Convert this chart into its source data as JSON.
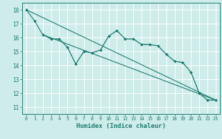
{
  "xlabel": "Humidex (Indice chaleur)",
  "background_color": "#cdecea",
  "grid_color": "#ffffff",
  "line_color": "#1a7a6e",
  "x_ticks": [
    0,
    1,
    2,
    3,
    4,
    5,
    6,
    7,
    8,
    9,
    10,
    11,
    12,
    13,
    14,
    15,
    16,
    17,
    18,
    19,
    20,
    21,
    22,
    23
  ],
  "y_ticks": [
    11,
    12,
    13,
    14,
    15,
    16,
    17,
    18
  ],
  "ylim": [
    10.5,
    18.5
  ],
  "xlim": [
    -0.5,
    23.5
  ],
  "line1_x": [
    0,
    1,
    2,
    3,
    4,
    5,
    6,
    7,
    8,
    9,
    10,
    11,
    12,
    13,
    14,
    15,
    16,
    17,
    18,
    19,
    20,
    21,
    22,
    23
  ],
  "line1_y": [
    18.0,
    17.2,
    16.2,
    15.9,
    15.9,
    15.3,
    14.1,
    15.0,
    14.9,
    15.1,
    16.1,
    16.5,
    15.9,
    15.9,
    15.5,
    15.5,
    15.4,
    14.8,
    14.3,
    14.2,
    13.5,
    12.0,
    11.5,
    11.5
  ],
  "line2_x": [
    2,
    3,
    4,
    5,
    6,
    7,
    8,
    9,
    10,
    11,
    12,
    13,
    14,
    15,
    16,
    17,
    18,
    19,
    20,
    21,
    22,
    23
  ],
  "line2_y": [
    16.2,
    15.9,
    15.9,
    15.3,
    14.1,
    15.0,
    14.9,
    15.1,
    16.1,
    16.5,
    15.9,
    15.9,
    15.5,
    15.5,
    15.4,
    14.8,
    14.3,
    14.2,
    13.5,
    12.0,
    11.5,
    11.5
  ],
  "line3_x": [
    0,
    23
  ],
  "line3_y": [
    18.0,
    11.5
  ],
  "line4_x": [
    2,
    23
  ],
  "line4_y": [
    16.2,
    11.5
  ]
}
